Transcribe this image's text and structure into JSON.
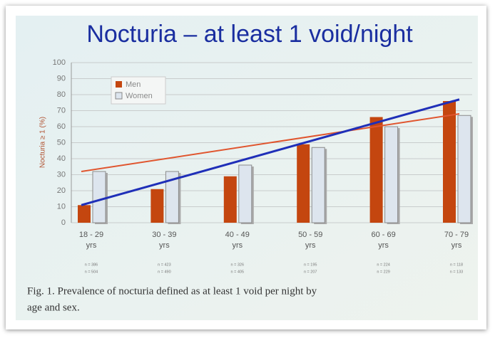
{
  "chart_data": {
    "type": "bar",
    "title": "Nocturia – at least 1 void/night",
    "y_label": "Nocturia ≥ 1 (%)",
    "categories": [
      "18 - 29 yrs",
      "30 - 39 yrs",
      "40 - 49 yrs",
      "50 - 59 yrs",
      "60 - 69 yrs",
      "70 - 79 yrs"
    ],
    "n_labels": [
      [
        "n = 386",
        "n = 504"
      ],
      [
        "n = 423",
        "n = 490"
      ],
      [
        "n = 326",
        "n = 405"
      ],
      [
        "n = 195",
        "n = 207"
      ],
      [
        "n = 224",
        "n = 229"
      ],
      [
        "n = 118",
        "n = 133"
      ]
    ],
    "series": [
      {
        "name": "Men",
        "color": "#c4460f",
        "values": [
          11,
          21,
          29,
          49,
          66,
          76
        ]
      },
      {
        "name": "Women",
        "color": "#dde5ee",
        "values": [
          32,
          32,
          36,
          47,
          60,
          67
        ]
      }
    ],
    "trend_lines": [
      {
        "color": "#e0552e",
        "start": 32,
        "end": 68
      },
      {
        "color": "#1f2fb8",
        "start": 11,
        "end": 77
      }
    ],
    "ylim": [
      0,
      100
    ],
    "yticks": [
      0,
      10,
      20,
      30,
      40,
      50,
      60,
      70,
      80,
      90,
      100
    ],
    "grid": true,
    "caption": [
      "Fig. 1. Prevalence of nocturia defined as at least 1 void per night by",
      "age and sex."
    ]
  }
}
